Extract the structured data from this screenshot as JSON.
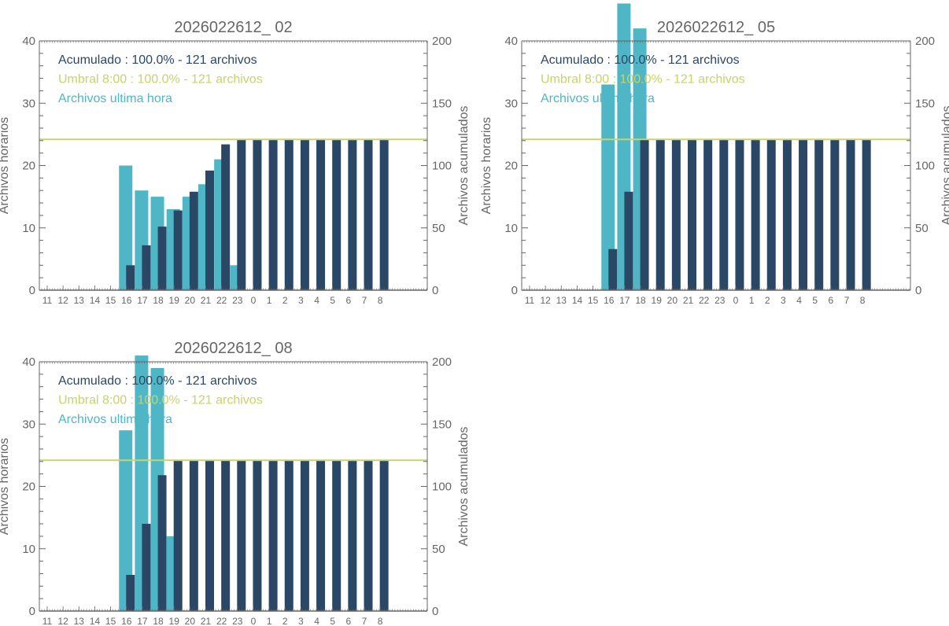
{
  "colors": {
    "hourly": "#4fb6c6",
    "cumulative": "#2b4766",
    "threshold": "#c8d36a",
    "axis": "#666666"
  },
  "chart_data": [
    {
      "type": "bar",
      "title": "2026022612_ 02",
      "categories": [
        "11",
        "12",
        "13",
        "14",
        "15",
        "16",
        "17",
        "18",
        "19",
        "20",
        "21",
        "22",
        "23",
        "0",
        "1",
        "2",
        "3",
        "4",
        "5",
        "6",
        "7",
        "8"
      ],
      "series": [
        {
          "name": "Archivos ultima hora",
          "axis": "left",
          "values": [
            0,
            0,
            0,
            0,
            0,
            20,
            16,
            15,
            13,
            15,
            17,
            21,
            4,
            0,
            0,
            0,
            0,
            0,
            0,
            0,
            0,
            0
          ]
        },
        {
          "name": "Acumulado",
          "axis": "right",
          "values": [
            0,
            0,
            0,
            0,
            0,
            20,
            36,
            51,
            64,
            79,
            96,
            117,
            121,
            121,
            121,
            121,
            121,
            121,
            121,
            121,
            121,
            121
          ]
        }
      ],
      "threshold": 121,
      "legend": [
        "Acumulado : 100.0% - 121 archivos",
        "Umbral 8:00 : 100.0% - 121 archivos",
        "Archivos ultima hora"
      ],
      "ylabel": "Archivos horarios",
      "y2label": "Archivos acumulados",
      "ylim": [
        0,
        40
      ],
      "y2lim": [
        0,
        200
      ],
      "yticks": [
        "0",
        "10",
        "20",
        "30",
        "40"
      ],
      "y2ticks": [
        "0",
        "50",
        "100",
        "150",
        "200"
      ],
      "legend_position": "top-left"
    },
    {
      "type": "bar",
      "title": "2026022612_ 05",
      "categories": [
        "11",
        "12",
        "13",
        "14",
        "15",
        "16",
        "17",
        "18",
        "19",
        "20",
        "21",
        "22",
        "23",
        "0",
        "1",
        "2",
        "3",
        "4",
        "5",
        "6",
        "7",
        "8"
      ],
      "series": [
        {
          "name": "Archivos ultima hora",
          "axis": "left",
          "values": [
            0,
            0,
            0,
            0,
            0,
            33,
            46,
            42,
            0,
            0,
            0,
            0,
            0,
            0,
            0,
            0,
            0,
            0,
            0,
            0,
            0,
            0
          ]
        },
        {
          "name": "Acumulado",
          "axis": "right",
          "values": [
            0,
            0,
            0,
            0,
            0,
            33,
            79,
            121,
            121,
            121,
            121,
            121,
            121,
            121,
            121,
            121,
            121,
            121,
            121,
            121,
            121,
            121
          ]
        }
      ],
      "threshold": 121,
      "legend": [
        "Acumulado : 100.0% - 121 archivos",
        "Umbral 8:00 : 100.0% - 121 archivos",
        "Archivos ultima hora"
      ],
      "ylabel": "Archivos horarios",
      "y2label": "Archivos acumulados",
      "ylim": [
        0,
        40
      ],
      "y2lim": [
        0,
        200
      ],
      "yticks": [
        "0",
        "10",
        "20",
        "30",
        "40"
      ],
      "y2ticks": [
        "0",
        "50",
        "100",
        "150",
        "200"
      ],
      "legend_position": "top-left"
    },
    {
      "type": "bar",
      "title": "2026022612_ 08",
      "categories": [
        "11",
        "12",
        "13",
        "14",
        "15",
        "16",
        "17",
        "18",
        "19",
        "20",
        "21",
        "22",
        "23",
        "0",
        "1",
        "2",
        "3",
        "4",
        "5",
        "6",
        "7",
        "8"
      ],
      "series": [
        {
          "name": "Archivos ultima hora",
          "axis": "left",
          "values": [
            0,
            0,
            0,
            0,
            0,
            29,
            41,
            39,
            12,
            0,
            0,
            0,
            0,
            0,
            0,
            0,
            0,
            0,
            0,
            0,
            0,
            0
          ]
        },
        {
          "name": "Acumulado",
          "axis": "right",
          "values": [
            0,
            0,
            0,
            0,
            0,
            29,
            70,
            109,
            121,
            121,
            121,
            121,
            121,
            121,
            121,
            121,
            121,
            121,
            121,
            121,
            121,
            121
          ]
        }
      ],
      "threshold": 121,
      "legend": [
        "Acumulado : 100.0% - 121 archivos",
        "Umbral 8:00 : 100.0% - 121 archivos",
        "Archivos ultima hora"
      ],
      "ylabel": "Archivos horarios",
      "y2label": "Archivos acumulados",
      "ylim": [
        0,
        40
      ],
      "y2lim": [
        0,
        200
      ],
      "yticks": [
        "0",
        "10",
        "20",
        "30",
        "40"
      ],
      "y2ticks": [
        "0",
        "50",
        "100",
        "150",
        "200"
      ],
      "legend_position": "top-left"
    }
  ]
}
